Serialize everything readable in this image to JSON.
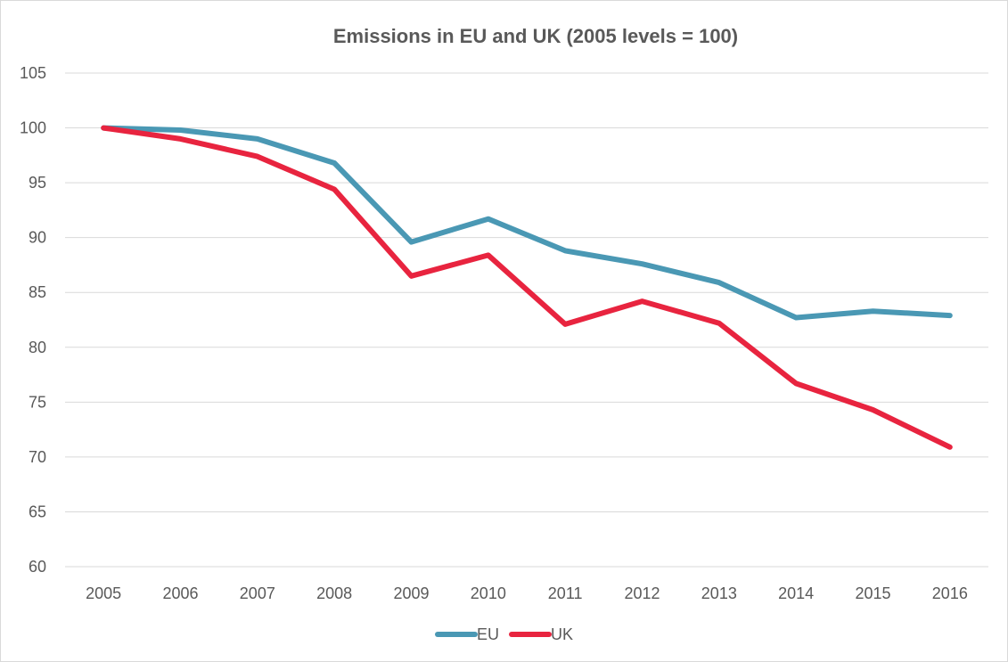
{
  "chart_data": {
    "type": "line",
    "title": "Emissions in EU and UK (2005 levels = 100)",
    "xlabel": "",
    "ylabel": "",
    "x": [
      "2005",
      "2006",
      "2007",
      "2008",
      "2009",
      "2010",
      "2011",
      "2012",
      "2013",
      "2014",
      "2015",
      "2016"
    ],
    "ylim": [
      60,
      105
    ],
    "yticks": [
      60,
      65,
      70,
      75,
      80,
      85,
      90,
      95,
      100,
      105
    ],
    "grid": true,
    "legend_position": "bottom",
    "series": [
      {
        "name": "EU",
        "color": "#4a98b4",
        "values": [
          100,
          99.8,
          99.0,
          96.8,
          89.6,
          91.7,
          88.8,
          87.6,
          85.9,
          82.7,
          83.3,
          82.9
        ]
      },
      {
        "name": "UK",
        "color": "#e8243f",
        "values": [
          100,
          99.0,
          97.4,
          94.4,
          86.5,
          88.4,
          82.1,
          84.2,
          82.2,
          76.7,
          74.3,
          70.9
        ]
      }
    ]
  }
}
